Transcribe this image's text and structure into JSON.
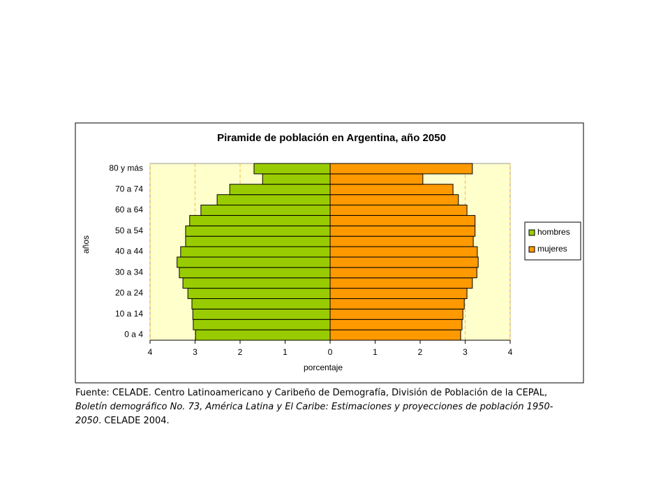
{
  "chart_data": {
    "type": "bar",
    "orientation": "horizontal",
    "title": "Piramide de población en Argentina, año 2050",
    "y_label": "años",
    "x_label": "porcentaje",
    "categories": [
      "0 a 4",
      null,
      "10 a 14",
      null,
      "20 a 24",
      null,
      "30 a 34",
      null,
      "40 a 44",
      null,
      "50 a 54",
      null,
      "60 a 64",
      null,
      "70 a 74",
      null,
      "80 y más"
    ],
    "series": [
      {
        "name": "hombres",
        "color": "#99cc00",
        "values": [
          -2.99,
          -3.04,
          -3.05,
          -3.07,
          -3.16,
          -3.27,
          -3.35,
          -3.4,
          -3.32,
          -3.21,
          -3.21,
          -3.12,
          -2.87,
          -2.51,
          -2.23,
          -1.5,
          -1.69
        ]
      },
      {
        "name": "mujeres",
        "color": "#ff9900",
        "values": [
          2.9,
          2.93,
          2.95,
          2.98,
          3.04,
          3.16,
          3.26,
          3.29,
          3.27,
          3.18,
          3.22,
          3.22,
          3.04,
          2.85,
          2.73,
          2.06,
          3.16
        ]
      }
    ],
    "xlim": [
      -4,
      4
    ],
    "xticks": [
      {
        "value": -4,
        "label": "4"
      },
      {
        "value": -3,
        "label": "3"
      },
      {
        "value": -2,
        "label": "2"
      },
      {
        "value": -1,
        "label": "1"
      },
      0,
      1,
      2,
      3,
      4
    ],
    "grid": true,
    "grid_color": "#f0c040",
    "plot_background": "#ffffcc",
    "legend": "right"
  },
  "source": {
    "line1": "Fuente: CELADE. Centro Latinoamericano y Caribeño de Demografía, División de Población de la CEPAL,",
    "line2": "Boletín demográfico No. 73, América Latina y El Caribe: Estimaciones y proyecciones de población 1950-",
    "line3_italic": "2050",
    "line3_rest": ". CELADE 2004."
  }
}
